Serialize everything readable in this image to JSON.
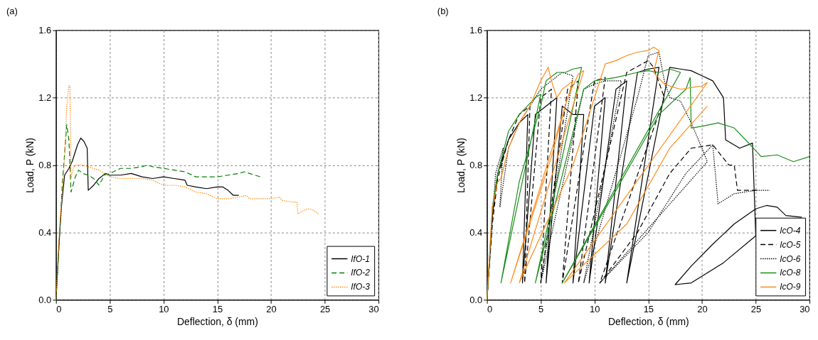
{
  "chart_data": [
    {
      "type": "line",
      "title": "(a)",
      "xlabel": "Deflection, δ (mm)",
      "ylabel": "Load, P (kN)",
      "xlim": [
        0,
        30
      ],
      "xticks": [
        0,
        5,
        10,
        15,
        20,
        25,
        30
      ],
      "ylim": [
        0,
        1.6
      ],
      "yticks": [
        {
          "value": 0,
          "label": "0.0"
        },
        0.4,
        0.8,
        1.2,
        1.6
      ],
      "grid": true,
      "legend": "bottom right",
      "marker": "none",
      "series": [
        {
          "name": "IfO-1",
          "color": "#000000",
          "line_style": "solid",
          "x": [
            0,
            0.3,
            0.5,
            0.8,
            1.2,
            1.5,
            2,
            2.3,
            2.6,
            2.9,
            3,
            3.5,
            4,
            4.6,
            5,
            6,
            7,
            8,
            9,
            10,
            11,
            12,
            12.2,
            13,
            14,
            15,
            15.5,
            16,
            16.5,
            17
          ],
          "values": [
            0,
            0.35,
            0.55,
            0.74,
            0.78,
            0.82,
            0.92,
            0.96,
            0.94,
            0.9,
            0.65,
            0.68,
            0.72,
            0.75,
            0.74,
            0.74,
            0.75,
            0.73,
            0.72,
            0.73,
            0.72,
            0.71,
            0.68,
            0.67,
            0.66,
            0.67,
            0.67,
            0.65,
            0.62,
            0.62
          ]
        },
        {
          "name": "IfO-2",
          "color": "#008000",
          "line_style": "dashed",
          "x": [
            0,
            0.3,
            0.6,
            0.9,
            1.0,
            1.2,
            1.3,
            1.4,
            1.8,
            2.1,
            2.5,
            3,
            3.5,
            4,
            4.5,
            5,
            6,
            7,
            8,
            8.5,
            9,
            10,
            11,
            12,
            13,
            14,
            15,
            16,
            17,
            17.5,
            18,
            19
          ],
          "values": [
            0,
            0.35,
            0.7,
            0.95,
            1.04,
            0.95,
            0.8,
            0.64,
            0.73,
            0.77,
            0.75,
            0.74,
            0.72,
            0.68,
            0.74,
            0.75,
            0.78,
            0.78,
            0.79,
            0.8,
            0.79,
            0.78,
            0.77,
            0.76,
            0.73,
            0.73,
            0.73,
            0.74,
            0.75,
            0.76,
            0.75,
            0.73
          ]
        },
        {
          "name": "IfO-3",
          "color": "#ff8c1a",
          "line_style": "dotted",
          "x": [
            0,
            0.3,
            0.6,
            0.8,
            1.0,
            1.2,
            1.3,
            1.4,
            1.6,
            1.8,
            2.5,
            3,
            4,
            5,
            6,
            7,
            8,
            9,
            10,
            11,
            12,
            13,
            14,
            15,
            16,
            17,
            17.7,
            18,
            19,
            20,
            20.8,
            21,
            22,
            22.4,
            22.5,
            23,
            23.5,
            24,
            24.4
          ],
          "values": [
            0,
            0.4,
            0.65,
            0.85,
            1.15,
            1.27,
            1.27,
            0.72,
            0.78,
            0.8,
            0.8,
            0.79,
            0.77,
            0.73,
            0.72,
            0.72,
            0.72,
            0.71,
            0.68,
            0.68,
            0.67,
            0.64,
            0.63,
            0.6,
            0.6,
            0.61,
            0.62,
            0.6,
            0.6,
            0.6,
            0.61,
            0.59,
            0.58,
            0.58,
            0.51,
            0.53,
            0.54,
            0.53,
            0.51
          ]
        }
      ]
    },
    {
      "type": "line",
      "title": "(b)",
      "xlabel": "Deflection, δ (mm)",
      "ylabel": "Load, P (kN)",
      "xlim": [
        0,
        30
      ],
      "xticks": [
        0,
        5,
        10,
        15,
        20,
        25,
        30
      ],
      "ylim": [
        0,
        1.6
      ],
      "yticks": [
        {
          "value": 0,
          "label": "0.0"
        },
        0.4,
        0.8,
        1.2,
        1.6
      ],
      "grid": true,
      "legend": "bottom right",
      "marker": "none",
      "series": [
        {
          "name": "IcO-4",
          "color": "#000000",
          "line_style": "solid",
          "x": [
            0,
            0.5,
            1,
            2,
            3,
            3.8,
            3.3,
            4.5,
            5.5,
            6.5,
            5.5,
            7,
            8,
            9,
            8,
            10,
            11,
            9.5,
            12,
            13,
            11,
            14,
            15,
            16,
            13,
            17,
            18,
            19,
            20,
            21,
            22,
            22.2,
            23.5,
            24.7,
            25,
            22,
            19,
            17.5,
            19,
            21,
            23,
            25,
            26,
            27,
            27.8,
            29.3
          ],
          "values": [
            0,
            0.5,
            0.75,
            0.95,
            1.05,
            1.1,
            0.1,
            1.1,
            1.15,
            1.2,
            0.1,
            1.15,
            1.1,
            1.1,
            0.1,
            1.15,
            1.2,
            0.1,
            1.25,
            1.3,
            0.1,
            1.35,
            1.37,
            1.38,
            0.1,
            1.38,
            1.37,
            1.36,
            1.33,
            1.3,
            1.2,
            0.95,
            0.9,
            0.93,
            0.38,
            0.22,
            0.1,
            0.09,
            0.2,
            0.33,
            0.45,
            0.54,
            0.56,
            0.55,
            0.5,
            0.49
          ]
        },
        {
          "name": "IcO-5",
          "color": "#000000",
          "line_style": "dashed",
          "x": [
            0,
            0.5,
            1,
            2,
            3,
            4,
            3.5,
            5,
            6,
            5,
            7.5,
            8.5,
            7,
            10,
            11,
            8.5,
            13,
            15,
            15.5,
            16.5,
            10.5,
            14,
            17,
            19,
            21,
            22.5,
            23,
            23.3,
            25.2
          ],
          "values": [
            0,
            0.45,
            0.72,
            0.95,
            1.1,
            1.15,
            0.1,
            1.2,
            1.25,
            0.1,
            1.25,
            1.3,
            0.1,
            1.3,
            1.32,
            0.1,
            1.35,
            1.42,
            1.38,
            1.2,
            0.1,
            0.4,
            0.75,
            0.9,
            0.92,
            0.8,
            0.8,
            0.65,
            0.65
          ]
        },
        {
          "name": "IcO-6",
          "color": "#000000",
          "line_style": "dotted",
          "x": [
            0,
            0.8,
            1.5,
            1.2,
            2,
            3,
            4,
            5,
            6,
            7,
            8,
            5,
            9,
            10,
            11,
            12.5,
            9,
            14,
            15,
            16,
            16.5,
            17,
            18,
            19,
            20,
            20.5,
            10.5,
            15,
            18.5,
            21,
            21.5,
            23,
            25,
            26.3
          ],
          "values": [
            0,
            0.75,
            0.9,
            0.55,
            0.9,
            1.05,
            1.15,
            1.25,
            1.3,
            1.35,
            1.33,
            0.1,
            1.25,
            1.28,
            1.3,
            1.3,
            0.1,
            1.2,
            1.45,
            1.47,
            1.3,
            1.2,
            1.18,
            1.05,
            0.9,
            0.82,
            0.1,
            0.4,
            0.75,
            0.92,
            0.57,
            0.63,
            0.65,
            0.65
          ]
        },
        {
          "name": "IcO-8",
          "color": "#1a8c1a",
          "line_style": "solid",
          "x": [
            0,
            0.5,
            1,
            2,
            3,
            4.5,
            5,
            1.3,
            3,
            5,
            5.5,
            6.5,
            7.3,
            8,
            8.8,
            4.5,
            9,
            10,
            12,
            14,
            15,
            16,
            17,
            18,
            7,
            12,
            16,
            18.5,
            18.9,
            19,
            20,
            21.5,
            23,
            24.5,
            25.5,
            27,
            28.5,
            30
          ],
          "values": [
            0,
            0.55,
            0.75,
            1.0,
            1.1,
            1.2,
            1.22,
            0.1,
            0.7,
            1.15,
            1.3,
            1.35,
            1.35,
            1.37,
            1.38,
            0.1,
            1.25,
            1.3,
            1.32,
            1.35,
            1.36,
            1.35,
            1.37,
            1.35,
            0.1,
            0.65,
            1.1,
            1.25,
            1.32,
            1.02,
            1.03,
            1.05,
            1.02,
            0.92,
            0.85,
            0.86,
            0.82,
            0.85
          ]
        },
        {
          "name": "IcO-9",
          "color": "#ff8c1a",
          "line_style": "solid",
          "x": [
            0,
            0.5,
            1,
            1.3,
            2,
            3,
            4,
            5,
            5.7,
            6,
            6.5,
            7,
            8,
            2.2,
            6,
            7.5,
            8.5,
            9,
            3,
            8,
            11,
            12,
            13,
            14,
            15,
            15.5,
            16,
            15.5,
            16.5,
            18,
            19,
            20,
            20.5,
            7.2,
            13,
            17,
            20.5
          ],
          "values": [
            0,
            0.55,
            0.7,
            0.72,
            0.9,
            1.05,
            1.15,
            1.3,
            1.38,
            1.3,
            1.2,
            1.25,
            1.3,
            0.1,
            0.85,
            1.2,
            1.34,
            1.36,
            0.1,
            0.8,
            1.4,
            1.42,
            1.45,
            1.47,
            1.48,
            1.5,
            1.48,
            1.35,
            1.28,
            1.25,
            1.26,
            1.27,
            1.29,
            0.1,
            0.45,
            0.9,
            1.15
          ]
        }
      ]
    }
  ]
}
